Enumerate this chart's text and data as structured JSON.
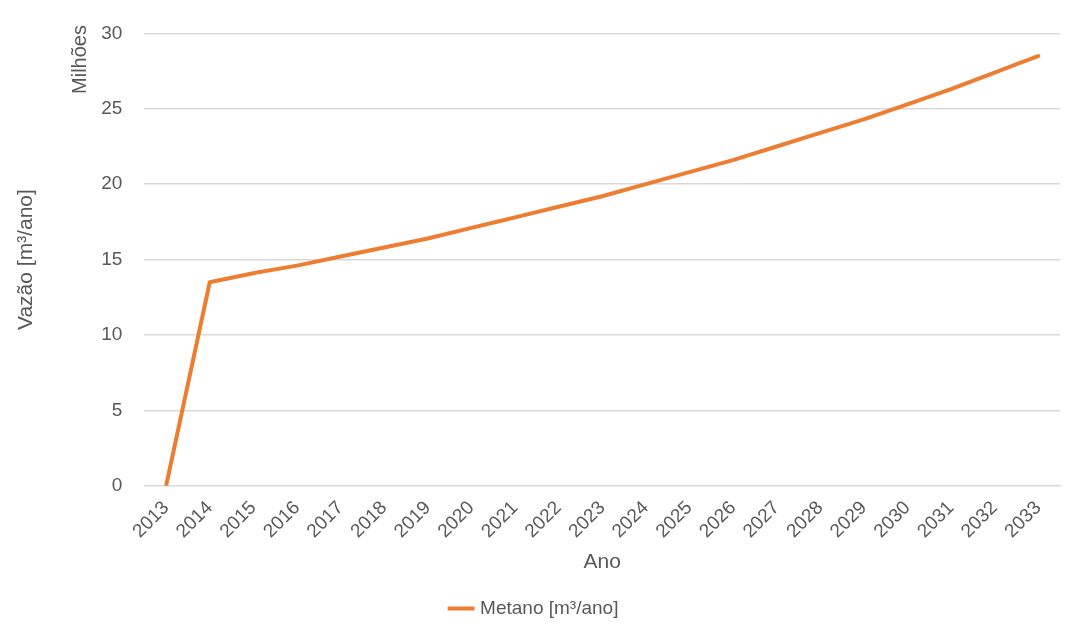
{
  "chart_data": {
    "type": "line",
    "xlabel": "Ano",
    "ylabel": "Vazão [m³/ano]",
    "annotations": [
      "Milhões"
    ],
    "categories": [
      "2013",
      "2014",
      "2015",
      "2016",
      "2017",
      "2018",
      "2019",
      "2020",
      "2021",
      "2022",
      "2023",
      "2024",
      "2025",
      "2026",
      "2027",
      "2028",
      "2029",
      "2030",
      "2031",
      "2032",
      "2033"
    ],
    "series": [
      {
        "name": "Metano [m³/ano]",
        "color": "#ed7d31",
        "values": [
          0,
          13.5,
          14.1,
          14.6,
          15.2,
          15.8,
          16.4,
          17.1,
          17.8,
          18.5,
          19.2,
          20.0,
          20.8,
          21.6,
          22.5,
          23.4,
          24.3,
          25.3,
          26.3,
          27.4,
          28.5
        ]
      }
    ],
    "ylim": [
      0,
      30
    ],
    "yticks": [
      0,
      5,
      10,
      15,
      20,
      25,
      30
    ],
    "grid": "y",
    "legend": "bottom",
    "marker": "none",
    "line_style": "solid"
  }
}
